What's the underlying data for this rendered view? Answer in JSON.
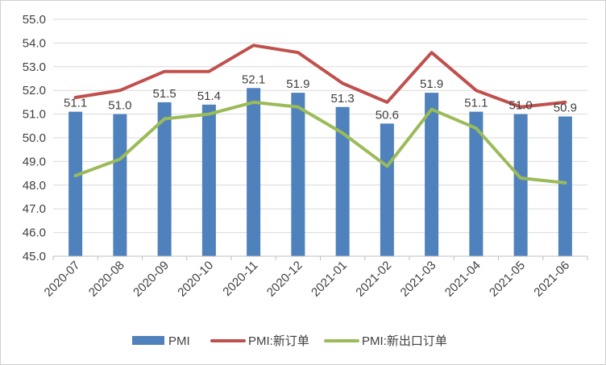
{
  "chart_data": {
    "type": "bar",
    "categories": [
      "2020-07",
      "2020-08",
      "2020-09",
      "2020-10",
      "2020-11",
      "2020-12",
      "2021-01",
      "2021-02",
      "2021-03",
      "2021-04",
      "2021-05",
      "2021-06"
    ],
    "ylim": [
      45.0,
      55.0
    ],
    "yticks": [
      "45.0",
      "46.0",
      "47.0",
      "48.0",
      "49.0",
      "50.0",
      "51.0",
      "52.0",
      "53.0",
      "54.0",
      "55.0"
    ],
    "grid": true,
    "legend_position": "bottom",
    "series": [
      {
        "name": "PMI",
        "type": "bar",
        "color": "#4f81bd",
        "values": [
          51.1,
          51.0,
          51.5,
          51.4,
          52.1,
          51.9,
          51.3,
          50.6,
          51.9,
          51.1,
          51.0,
          50.9
        ],
        "labels": [
          "51.1",
          "51.0",
          "51.5",
          "51.4",
          "52.1",
          "51.9",
          "51.3",
          "50.6",
          "51.9",
          "51.1",
          "51.0",
          "50.9"
        ]
      },
      {
        "name": "PMI:新订单",
        "type": "line",
        "color": "#c0504d",
        "values": [
          51.7,
          52.0,
          52.8,
          52.8,
          53.9,
          53.6,
          52.3,
          51.5,
          53.6,
          52.0,
          51.3,
          51.5
        ]
      },
      {
        "name": "PMI:新出口订单",
        "type": "line",
        "color": "#9bbb59",
        "values": [
          48.4,
          49.1,
          50.8,
          51.0,
          51.5,
          51.3,
          50.2,
          48.8,
          51.2,
          50.4,
          48.3,
          48.1
        ]
      }
    ]
  }
}
